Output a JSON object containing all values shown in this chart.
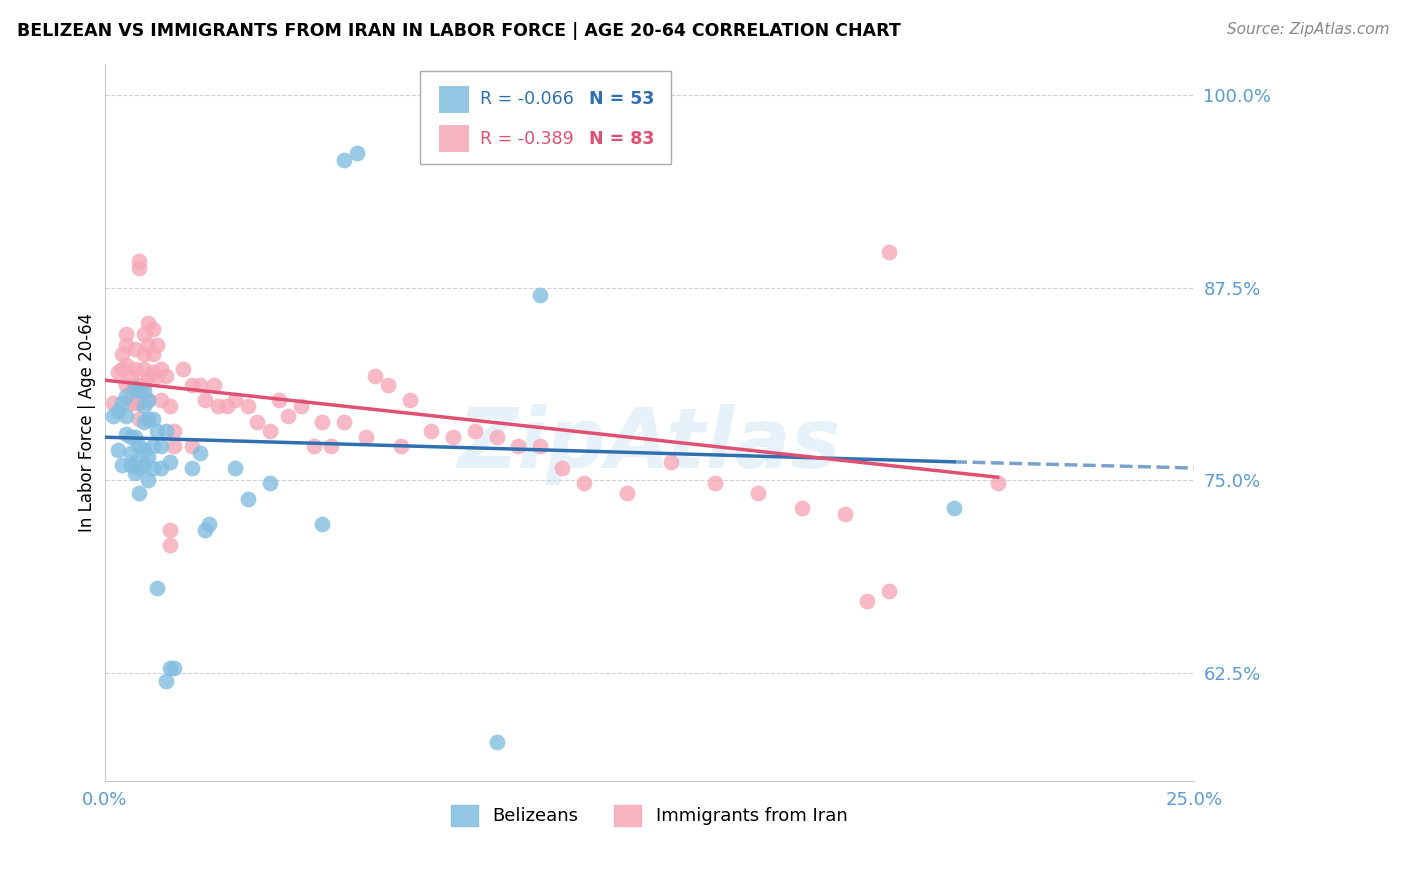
{
  "title": "BELIZEAN VS IMMIGRANTS FROM IRAN IN LABOR FORCE | AGE 20-64 CORRELATION CHART",
  "source": "Source: ZipAtlas.com",
  "ylabel": "In Labor Force | Age 20-64",
  "xlim": [
    0.0,
    0.25
  ],
  "ylim": [
    0.555,
    1.02
  ],
  "yticks": [
    0.625,
    0.75,
    0.875,
    1.0
  ],
  "ytick_labels": [
    "62.5%",
    "75.0%",
    "87.5%",
    "100.0%"
  ],
  "xticks": [
    0.0,
    0.05,
    0.1,
    0.15,
    0.2,
    0.25
  ],
  "xtick_labels": [
    "0.0%",
    "",
    "",
    "",
    "",
    "25.0%"
  ],
  "watermark": "ZipAtlas",
  "blue_color": "#82bde0",
  "pink_color": "#f7a8b8",
  "blue_line_color": "#3070b0",
  "pink_line_color": "#e05070",
  "tick_color": "#5b9bd5",
  "grid_color": "#cccccc",
  "background_color": "#ffffff",
  "blue_line": [
    [
      0.0,
      0.778
    ],
    [
      0.195,
      0.762
    ]
  ],
  "pink_line": [
    [
      0.0,
      0.815
    ],
    [
      0.205,
      0.752
    ]
  ],
  "blue_dashed_line": [
    [
      0.195,
      0.762
    ],
    [
      0.25,
      0.758
    ]
  ],
  "blue_dots": [
    [
      0.002,
      0.792
    ],
    [
      0.003,
      0.77
    ],
    [
      0.003,
      0.795
    ],
    [
      0.004,
      0.76
    ],
    [
      0.004,
      0.8
    ],
    [
      0.005,
      0.805
    ],
    [
      0.005,
      0.792
    ],
    [
      0.005,
      0.78
    ],
    [
      0.006,
      0.778
    ],
    [
      0.006,
      0.768
    ],
    [
      0.006,
      0.76
    ],
    [
      0.007,
      0.81
    ],
    [
      0.007,
      0.778
    ],
    [
      0.007,
      0.762
    ],
    [
      0.007,
      0.755
    ],
    [
      0.008,
      0.808
    ],
    [
      0.008,
      0.772
    ],
    [
      0.008,
      0.758
    ],
    [
      0.008,
      0.742
    ],
    [
      0.009,
      0.808
    ],
    [
      0.009,
      0.798
    ],
    [
      0.009,
      0.788
    ],
    [
      0.009,
      0.77
    ],
    [
      0.009,
      0.76
    ],
    [
      0.01,
      0.802
    ],
    [
      0.01,
      0.79
    ],
    [
      0.01,
      0.765
    ],
    [
      0.01,
      0.75
    ],
    [
      0.011,
      0.79
    ],
    [
      0.011,
      0.772
    ],
    [
      0.011,
      0.758
    ],
    [
      0.012,
      0.782
    ],
    [
      0.012,
      0.68
    ],
    [
      0.013,
      0.772
    ],
    [
      0.013,
      0.758
    ],
    [
      0.014,
      0.782
    ],
    [
      0.014,
      0.62
    ],
    [
      0.015,
      0.762
    ],
    [
      0.015,
      0.628
    ],
    [
      0.016,
      0.628
    ],
    [
      0.02,
      0.758
    ],
    [
      0.022,
      0.768
    ],
    [
      0.023,
      0.718
    ],
    [
      0.024,
      0.722
    ],
    [
      0.03,
      0.758
    ],
    [
      0.033,
      0.738
    ],
    [
      0.038,
      0.748
    ],
    [
      0.05,
      0.722
    ],
    [
      0.055,
      0.958
    ],
    [
      0.058,
      0.962
    ],
    [
      0.09,
      0.58
    ],
    [
      0.1,
      0.87
    ],
    [
      0.195,
      0.732
    ]
  ],
  "pink_dots": [
    [
      0.002,
      0.8
    ],
    [
      0.003,
      0.82
    ],
    [
      0.004,
      0.832
    ],
    [
      0.004,
      0.822
    ],
    [
      0.005,
      0.845
    ],
    [
      0.005,
      0.838
    ],
    [
      0.005,
      0.825
    ],
    [
      0.005,
      0.812
    ],
    [
      0.006,
      0.818
    ],
    [
      0.006,
      0.808
    ],
    [
      0.006,
      0.8
    ],
    [
      0.007,
      0.835
    ],
    [
      0.007,
      0.822
    ],
    [
      0.007,
      0.812
    ],
    [
      0.007,
      0.8
    ],
    [
      0.008,
      0.892
    ],
    [
      0.008,
      0.888
    ],
    [
      0.008,
      0.812
    ],
    [
      0.008,
      0.8
    ],
    [
      0.008,
      0.79
    ],
    [
      0.009,
      0.845
    ],
    [
      0.009,
      0.832
    ],
    [
      0.009,
      0.822
    ],
    [
      0.009,
      0.812
    ],
    [
      0.01,
      0.852
    ],
    [
      0.01,
      0.838
    ],
    [
      0.01,
      0.818
    ],
    [
      0.01,
      0.802
    ],
    [
      0.011,
      0.848
    ],
    [
      0.011,
      0.832
    ],
    [
      0.011,
      0.82
    ],
    [
      0.012,
      0.838
    ],
    [
      0.012,
      0.818
    ],
    [
      0.013,
      0.822
    ],
    [
      0.013,
      0.802
    ],
    [
      0.014,
      0.818
    ],
    [
      0.015,
      0.798
    ],
    [
      0.015,
      0.718
    ],
    [
      0.015,
      0.708
    ],
    [
      0.016,
      0.782
    ],
    [
      0.016,
      0.772
    ],
    [
      0.018,
      0.822
    ],
    [
      0.02,
      0.812
    ],
    [
      0.02,
      0.772
    ],
    [
      0.022,
      0.812
    ],
    [
      0.023,
      0.802
    ],
    [
      0.025,
      0.812
    ],
    [
      0.026,
      0.798
    ],
    [
      0.028,
      0.798
    ],
    [
      0.03,
      0.802
    ],
    [
      0.033,
      0.798
    ],
    [
      0.035,
      0.788
    ],
    [
      0.038,
      0.782
    ],
    [
      0.04,
      0.802
    ],
    [
      0.042,
      0.792
    ],
    [
      0.045,
      0.798
    ],
    [
      0.048,
      0.772
    ],
    [
      0.05,
      0.788
    ],
    [
      0.052,
      0.772
    ],
    [
      0.055,
      0.788
    ],
    [
      0.06,
      0.778
    ],
    [
      0.062,
      0.818
    ],
    [
      0.065,
      0.812
    ],
    [
      0.068,
      0.772
    ],
    [
      0.07,
      0.802
    ],
    [
      0.075,
      0.782
    ],
    [
      0.08,
      0.778
    ],
    [
      0.085,
      0.782
    ],
    [
      0.09,
      0.778
    ],
    [
      0.095,
      0.772
    ],
    [
      0.1,
      0.772
    ],
    [
      0.105,
      0.758
    ],
    [
      0.11,
      0.748
    ],
    [
      0.12,
      0.742
    ],
    [
      0.13,
      0.762
    ],
    [
      0.14,
      0.748
    ],
    [
      0.15,
      0.742
    ],
    [
      0.16,
      0.732
    ],
    [
      0.17,
      0.728
    ],
    [
      0.175,
      0.672
    ],
    [
      0.18,
      0.678
    ],
    [
      0.18,
      0.898
    ],
    [
      0.205,
      0.748
    ]
  ]
}
